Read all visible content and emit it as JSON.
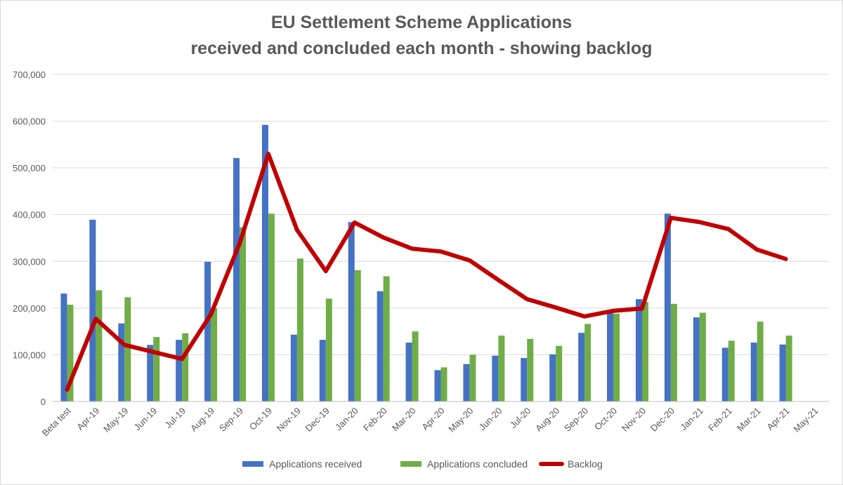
{
  "chart_data": {
    "type": "bar",
    "title": "EU Settlement Scheme Applications",
    "subtitle": "received and concluded each month - showing backlog",
    "categories": [
      "Beta test",
      "Apr-19",
      "May-19",
      "Jun-19",
      "Jul-19",
      "Aug-19",
      "Sep-19",
      "Oct-19",
      "Nov-19",
      "Dec-19",
      "Jan-20",
      "Feb-20",
      "Mar-20",
      "Apr-20",
      "May-20",
      "Jun-20",
      "Jul-20",
      "Aug-20",
      "Sep-20",
      "Oct-20",
      "Nov-20",
      "Dec-20",
      "Jan-21",
      "Feb-21",
      "Mar-21",
      "Apr-21",
      "May-21"
    ],
    "yticks": [
      "0",
      "100,000",
      "200,000",
      "300,000",
      "400,000",
      "500,000",
      "600,000",
      "700,000"
    ],
    "ylim": [
      0,
      700000
    ],
    "grid": true,
    "legend_position": "bottom",
    "series": [
      {
        "name": "Applications received",
        "kind": "bar",
        "color": "#4472c4",
        "values": [
          231000,
          389000,
          167000,
          121000,
          132000,
          299000,
          521000,
          592000,
          143000,
          132000,
          384000,
          236000,
          126000,
          67000,
          80000,
          98000,
          93000,
          101000,
          147000,
          192000,
          219000,
          402000,
          180000,
          115000,
          126000,
          122000,
          null
        ]
      },
      {
        "name": "Applications concluded",
        "kind": "bar",
        "color": "#70ad47",
        "values": [
          207000,
          238000,
          223000,
          138000,
          146000,
          200000,
          373000,
          402000,
          306000,
          220000,
          281000,
          268000,
          150000,
          73000,
          100000,
          141000,
          134000,
          119000,
          166000,
          188000,
          213000,
          209000,
          190000,
          130000,
          171000,
          141000,
          null
        ]
      },
      {
        "name": "Backlog",
        "kind": "line",
        "color": "#c00000",
        "values": [
          25000,
          177000,
          121000,
          106000,
          91000,
          186000,
          338000,
          530000,
          367000,
          279000,
          383000,
          351000,
          327000,
          321000,
          302000,
          260000,
          219000,
          201000,
          182000,
          194000,
          199000,
          393000,
          384000,
          369000,
          325000,
          305000,
          null
        ]
      }
    ]
  }
}
